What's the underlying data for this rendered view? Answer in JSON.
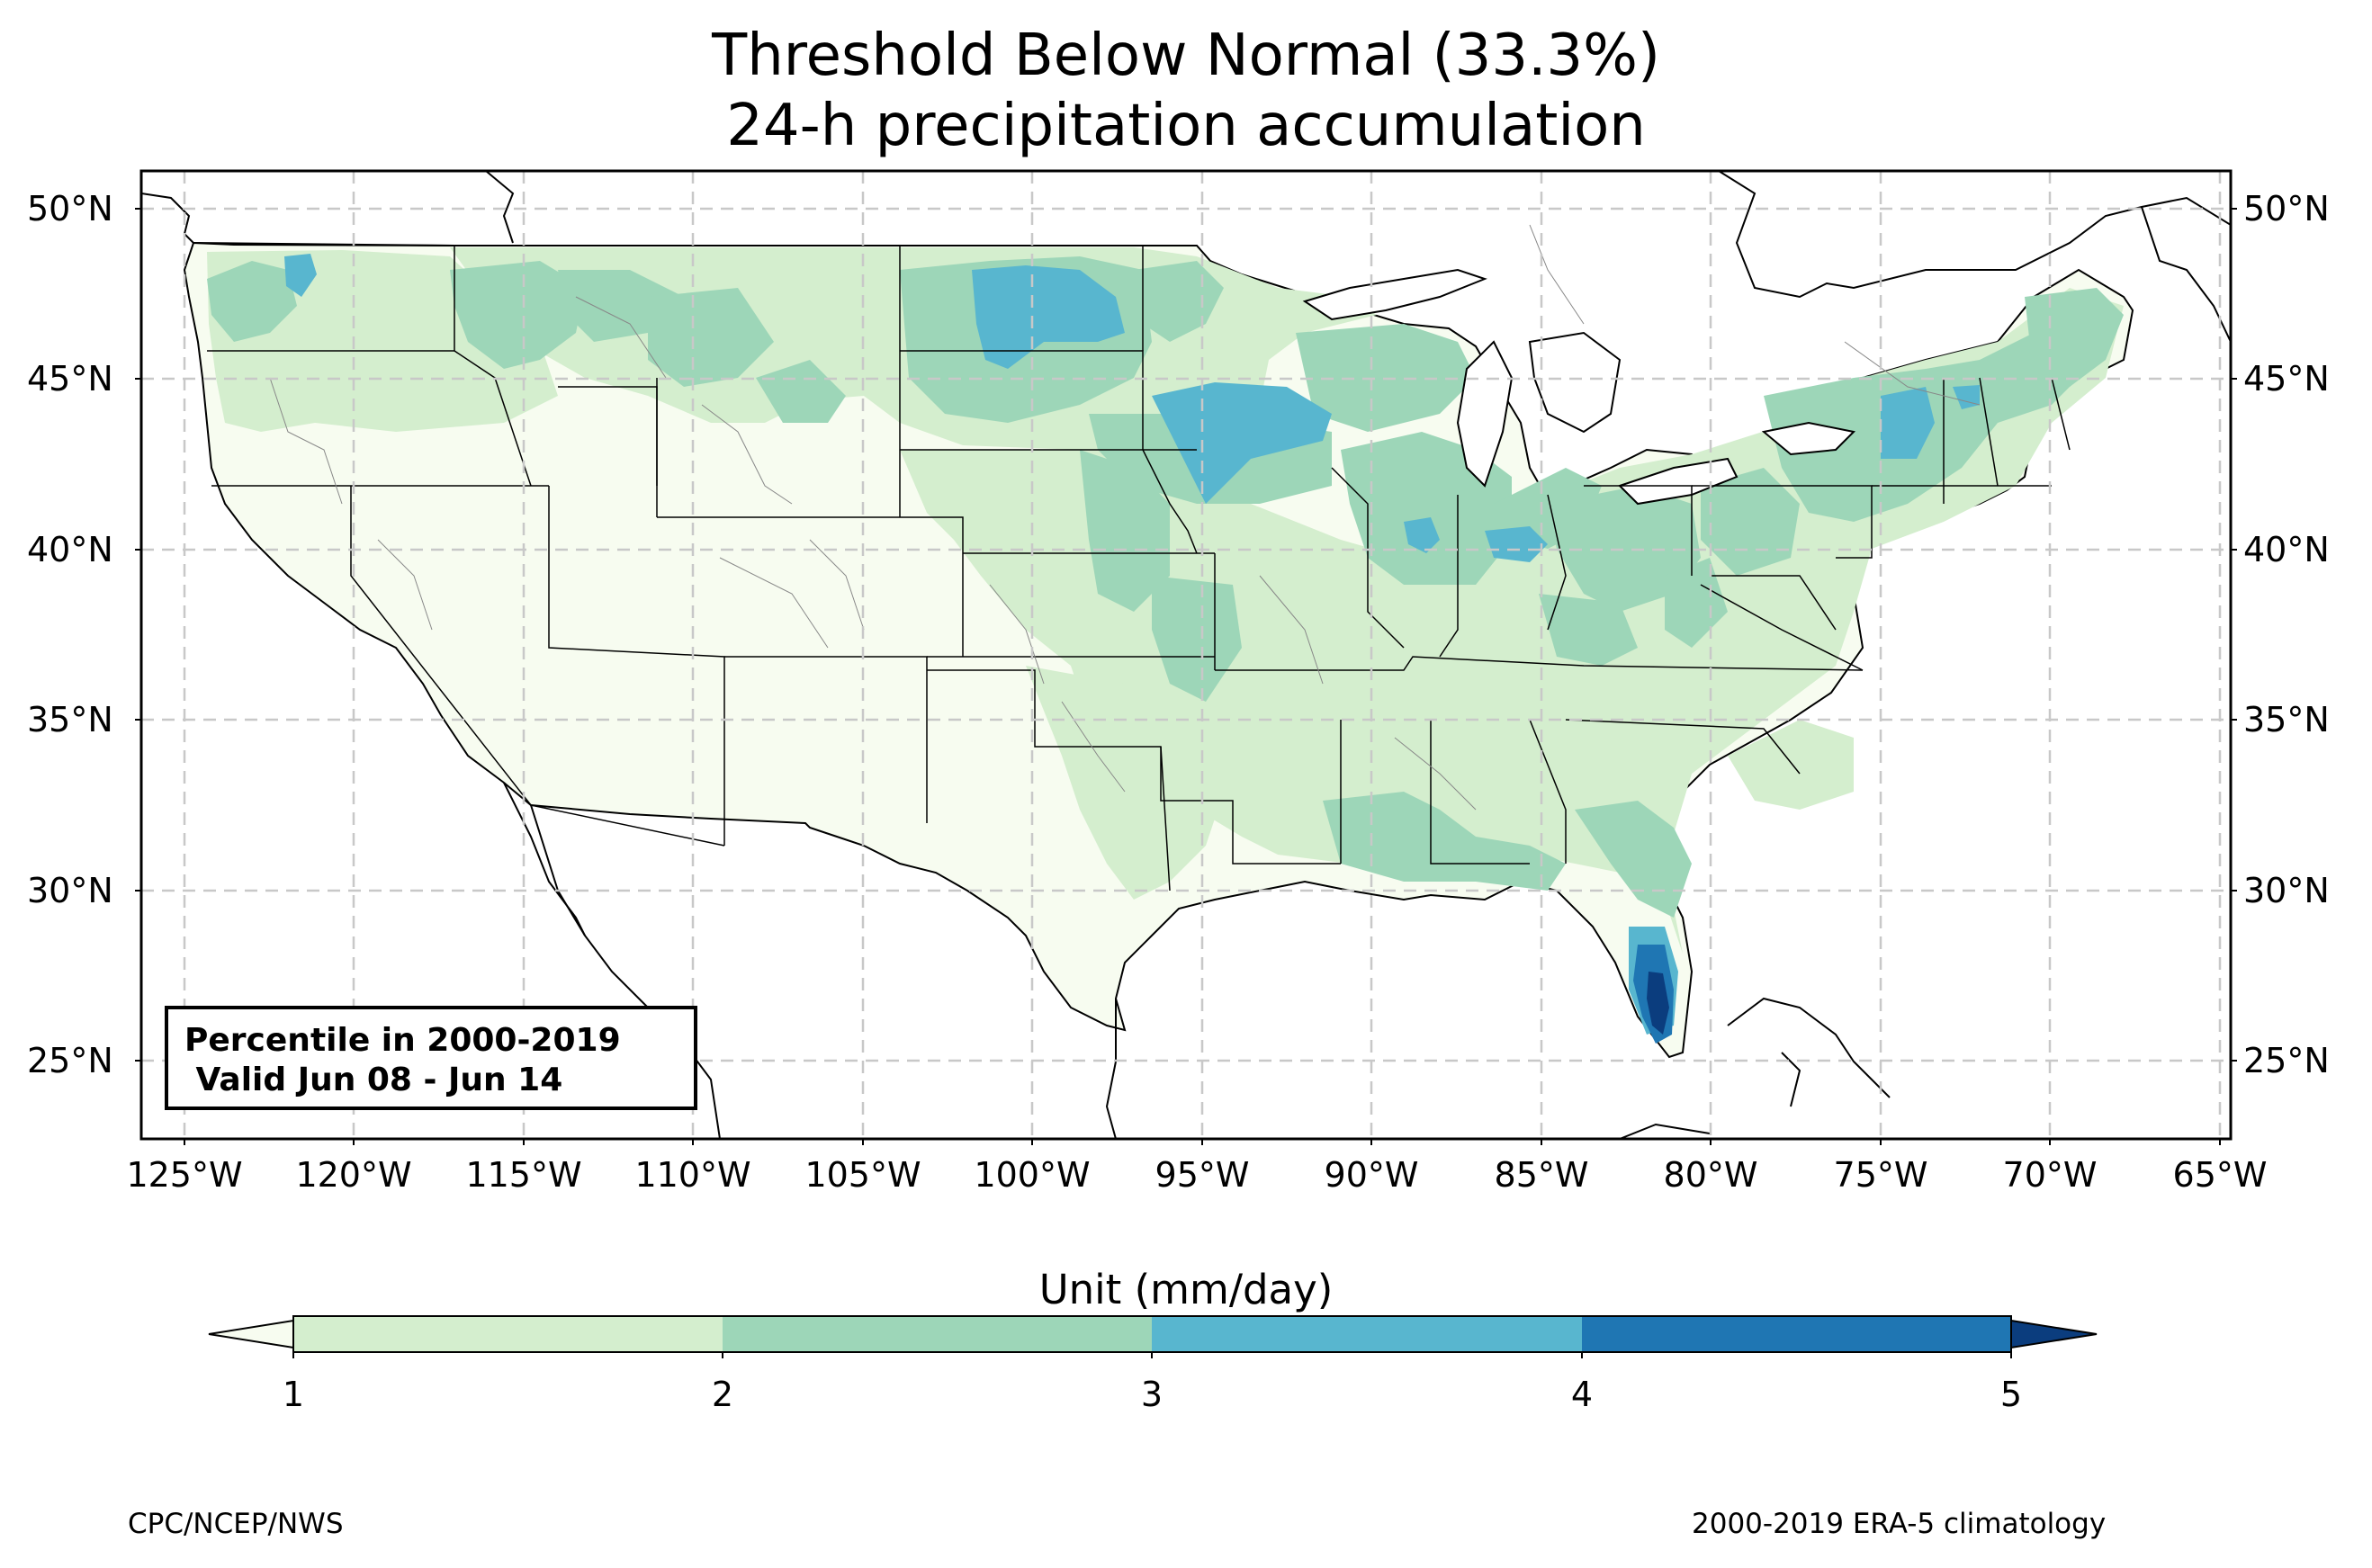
{
  "title": {
    "line1": "Threshold Below Normal (33.3%)",
    "line2": "24-h precipitation accumulation"
  },
  "map": {
    "lon_range": [
      -126.5,
      -64.8
    ],
    "lat_range": [
      22.8,
      51.2
    ],
    "lat_ticks": [
      {
        "value": 50,
        "label": "50°N"
      },
      {
        "value": 45,
        "label": "45°N"
      },
      {
        "value": 40,
        "label": "40°N"
      },
      {
        "value": 35,
        "label": "35°N"
      },
      {
        "value": 30,
        "label": "30°N"
      },
      {
        "value": 25,
        "label": "25°N"
      }
    ],
    "lon_ticks": [
      {
        "value": -125,
        "label": "125°W"
      },
      {
        "value": -120,
        "label": "120°W"
      },
      {
        "value": -115,
        "label": "115°W"
      },
      {
        "value": -110,
        "label": "110°W"
      },
      {
        "value": -105,
        "label": "105°W"
      },
      {
        "value": -100,
        "label": "100°W"
      },
      {
        "value": -95,
        "label": "95°W"
      },
      {
        "value": -90,
        "label": "90°W"
      },
      {
        "value": -85,
        "label": "85°W"
      },
      {
        "value": -80,
        "label": "80°W"
      },
      {
        "value": -75,
        "label": "75°W"
      },
      {
        "value": -70,
        "label": "70°W"
      },
      {
        "value": -65,
        "label": "65°W"
      }
    ],
    "gridlines": "dashed",
    "info_box": {
      "line1": "Percentile in 2000-2019",
      "line2": " Valid Jun 08 - Jun 14"
    }
  },
  "colorbar": {
    "title": "Unit (mm/day)",
    "levels": [
      1,
      2,
      3,
      4,
      5
    ],
    "colors": [
      "#f7fcf0",
      "#d4eece",
      "#9dd6b8",
      "#58b6cf",
      "#1f76b3",
      "#0b3d7e"
    ],
    "extend": "both"
  },
  "footer": {
    "left": "CPC/NCEP/NWS",
    "right": "2000-2019 ERA-5 climatology"
  },
  "colors": {
    "below_1": "#f7fcf0",
    "1_2": "#d4eece",
    "2_3": "#9dd6b8",
    "3_4": "#58b6cf",
    "4_5": "#1f76b3",
    "above_5": "#0b3d7e"
  }
}
